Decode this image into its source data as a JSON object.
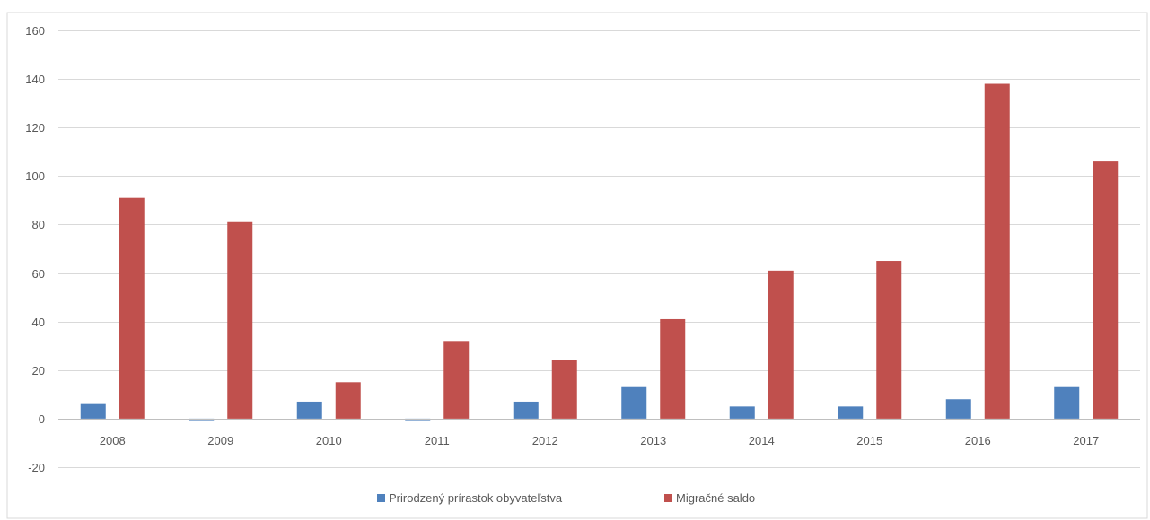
{
  "chart_data": {
    "type": "bar",
    "categories": [
      "2008",
      "2009",
      "2010",
      "2011",
      "2012",
      "2013",
      "2014",
      "2015",
      "2016",
      "2017"
    ],
    "series": [
      {
        "name": "Prirodzený prírastok obyvateľstva",
        "color": "#4F81BD",
        "values": [
          6,
          -1,
          7,
          -1,
          7,
          13,
          5,
          5,
          8,
          13
        ]
      },
      {
        "name": "Migračné saldo",
        "color": "#C0504D",
        "values": [
          91,
          81,
          15,
          32,
          24,
          41,
          61,
          65,
          138,
          106
        ]
      }
    ],
    "title": "",
    "xlabel": "",
    "ylabel": "",
    "ylim": [
      -20,
      160
    ],
    "yticks": [
      -20,
      0,
      20,
      40,
      60,
      80,
      100,
      120,
      140,
      160
    ],
    "grid": true,
    "legend_position": "bottom"
  }
}
